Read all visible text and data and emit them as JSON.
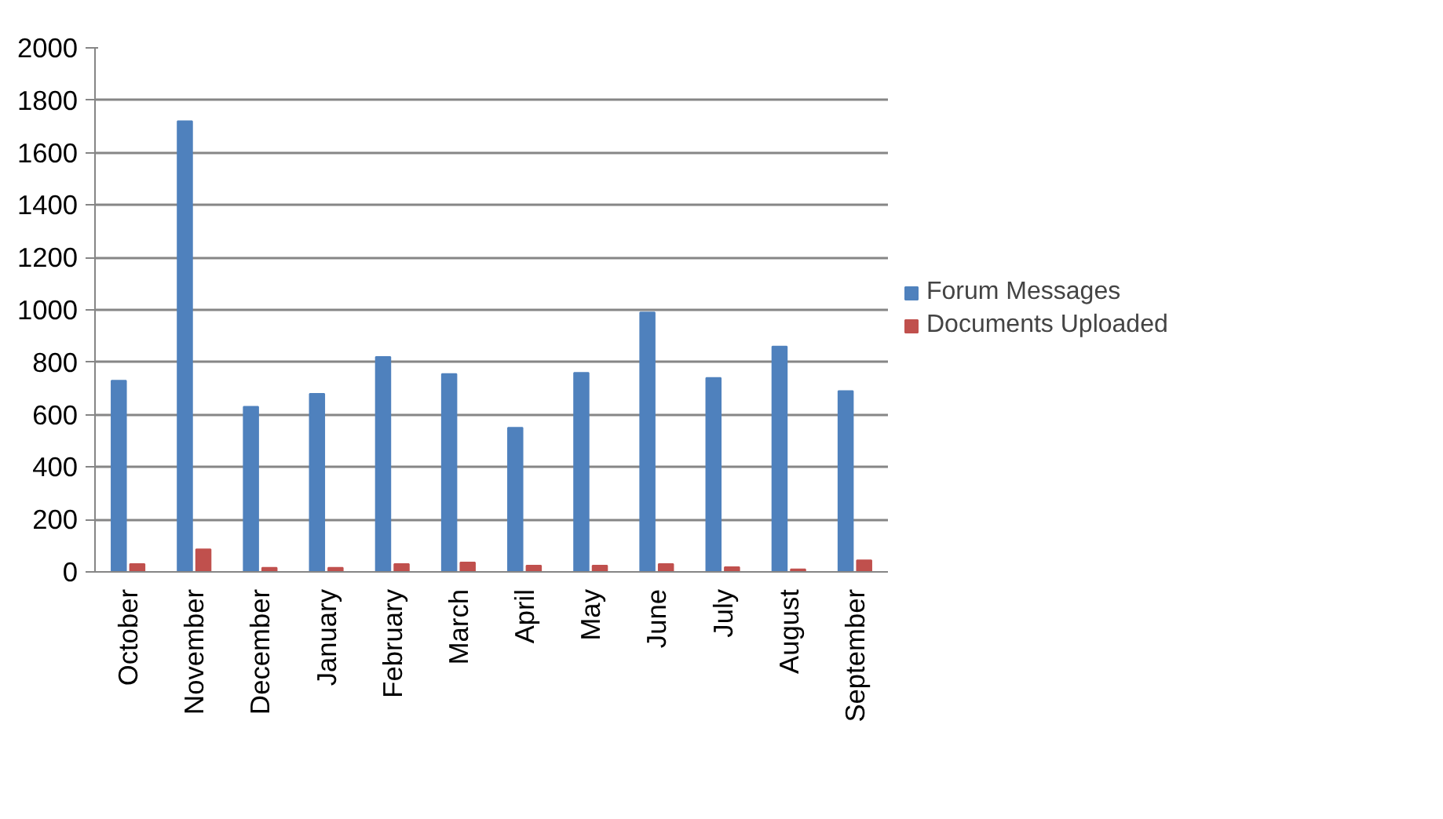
{
  "chart_data": {
    "type": "bar",
    "categories": [
      "October",
      "November",
      "December",
      "January",
      "February",
      "March",
      "April",
      "May",
      "June",
      "July",
      "August",
      "September"
    ],
    "series": [
      {
        "name": "Forum Messages",
        "color": "#4f81bd",
        "values": [
          730,
          1720,
          630,
          680,
          820,
          755,
          550,
          760,
          990,
          740,
          860,
          690
        ]
      },
      {
        "name": "Documents Uploaded",
        "color": "#c0504d",
        "values": [
          30,
          86,
          16,
          16,
          30,
          36,
          24,
          24,
          30,
          18,
          10,
          44
        ]
      }
    ],
    "ylim": [
      0,
      2000
    ],
    "yticks": [
      0,
      200,
      400,
      600,
      800,
      1000,
      1200,
      1400,
      1600,
      1800,
      2000
    ],
    "grid": "y",
    "legend": "right"
  }
}
